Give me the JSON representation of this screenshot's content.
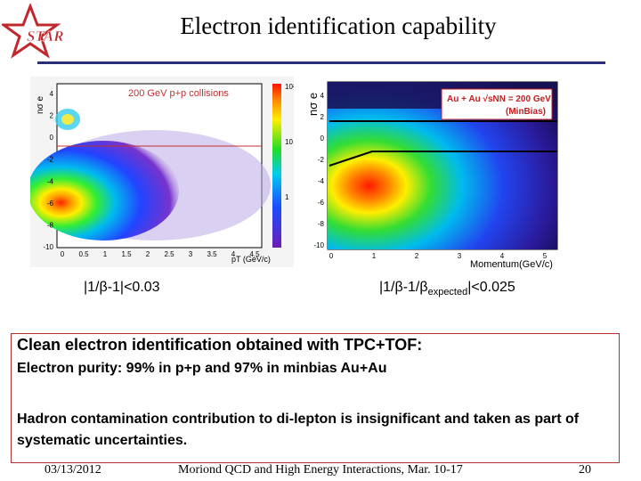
{
  "slide": {
    "title": "Electron identification capability",
    "logo_text": "STAR"
  },
  "left_plot": {
    "annotation": "200 GeV p+p collisions",
    "y_label": "nσ e",
    "x_label": "pT (GeV/c)",
    "y_ticks": [
      "4",
      "2",
      "0",
      "-2",
      "-4",
      "-6",
      "-8",
      "-10"
    ],
    "x_ticks": [
      "0",
      "0.5",
      "1",
      "1.5",
      "2",
      "2.5",
      "3",
      "3.5",
      "4",
      "4.5"
    ],
    "z_ticks": [
      "10²",
      "10",
      "1"
    ],
    "caption": "|1/β-1|<0.03"
  },
  "right_plot": {
    "y_label": "nσ e",
    "x_label": "Momentum(GeV/c)",
    "legend_line1": "Au + Au √sNN = 200 GeV",
    "legend_line2": "(MinBias)",
    "y_ticks": [
      "4",
      "2",
      "0",
      "-2",
      "-4",
      "-6",
      "-8",
      "-10"
    ],
    "x_ticks": [
      "0",
      "1",
      "2",
      "3",
      "4",
      "5"
    ],
    "caption_main": "|1/β-1/β",
    "caption_sub": "expected",
    "caption_tail": "|<0.025"
  },
  "summary": {
    "heading": "Clean electron identification obtained with TPC+TOF:",
    "purity": "Electron purity: 99% in p+p and 97% in minbias Au+Au",
    "contamination": "Hadron contamination contribution to di-lepton is insignificant and taken as part of systematic uncertainties."
  },
  "footer": {
    "date": "03/13/2012",
    "conference": "Moriond QCD and High Energy Interactions, Mar. 10-17",
    "page": "20"
  },
  "colors": {
    "rule": "#2b2f7a",
    "logo_star": "#c0282d",
    "box_border": "#b03030"
  }
}
